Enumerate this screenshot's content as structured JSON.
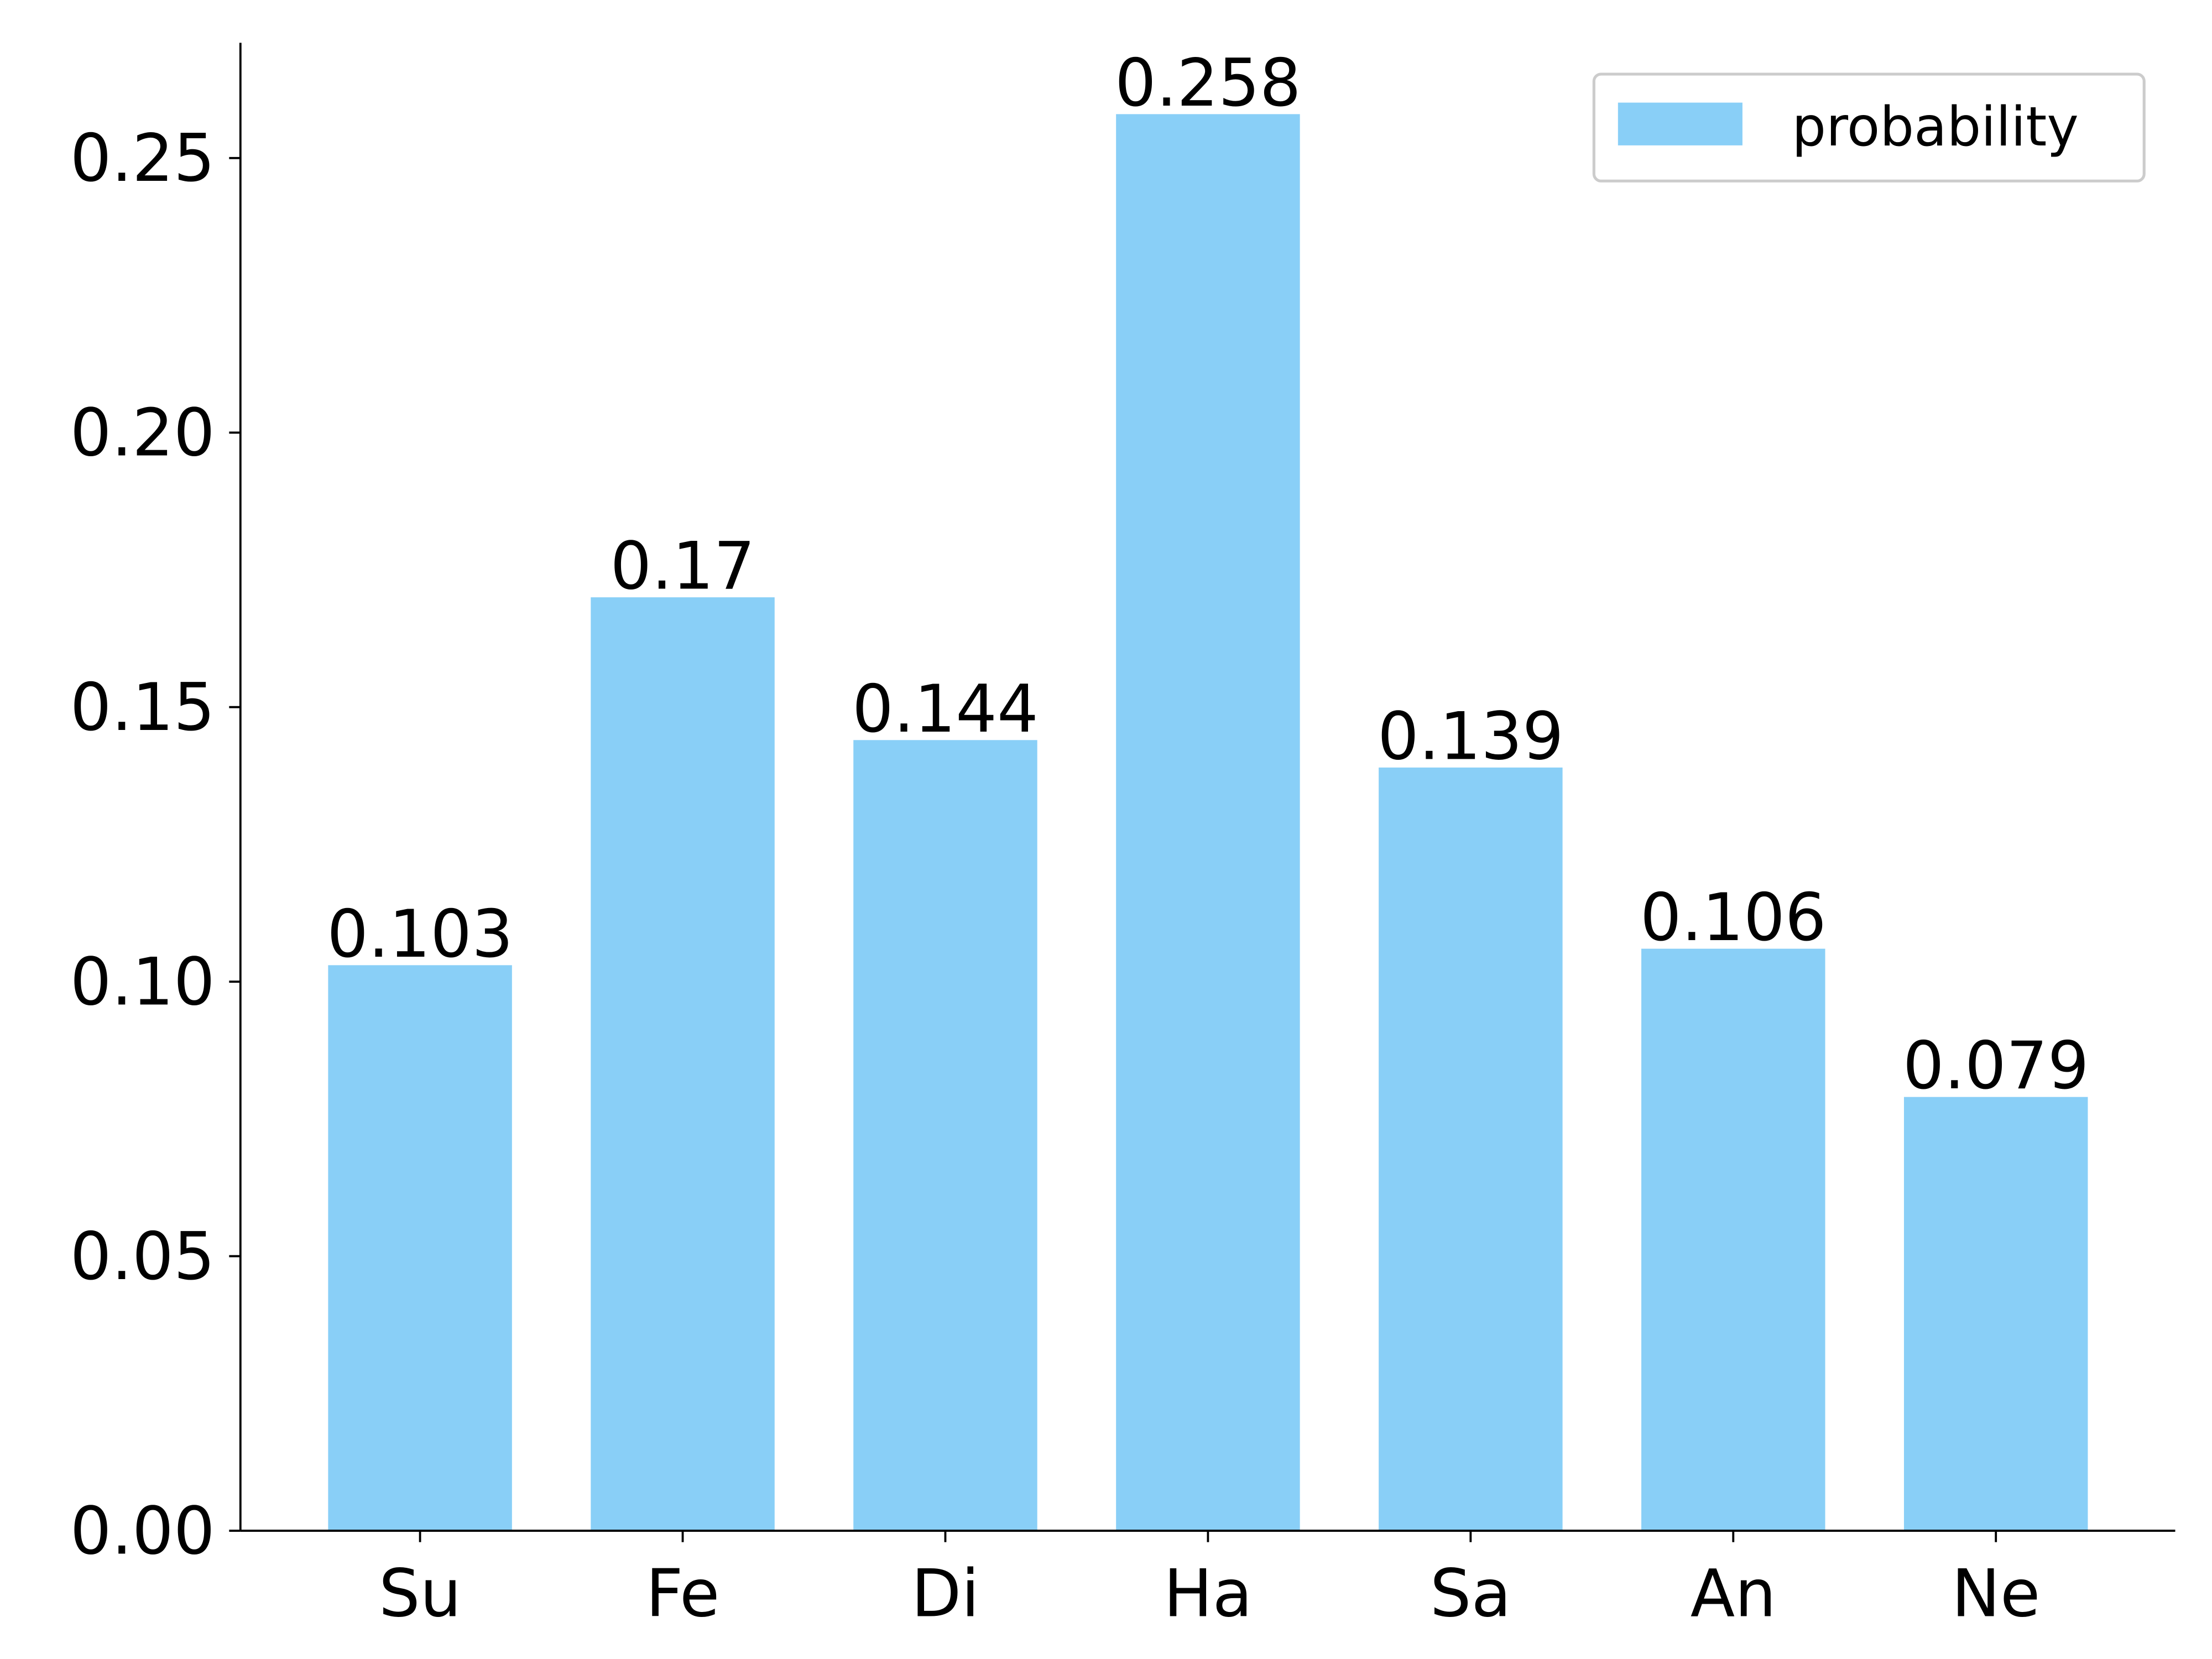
{
  "chart_data": {
    "type": "bar",
    "categories": [
      "Su",
      "Fe",
      "Di",
      "Ha",
      "Sa",
      "An",
      "Ne"
    ],
    "series": [
      {
        "name": "probability",
        "color": "#89cff7",
        "values": [
          0.103,
          0.17,
          0.144,
          0.258,
          0.139,
          0.106,
          0.079
        ]
      }
    ],
    "ylim": [
      0,
      0.271
    ],
    "yticks": [
      {
        "value": 0,
        "label": "0.00"
      },
      0.05,
      {
        "value": 0.1,
        "label": "0.10"
      },
      0.15,
      {
        "value": 0.2,
        "label": "0.20"
      },
      0.25
    ],
    "legend": "upper right",
    "grid": false
  }
}
